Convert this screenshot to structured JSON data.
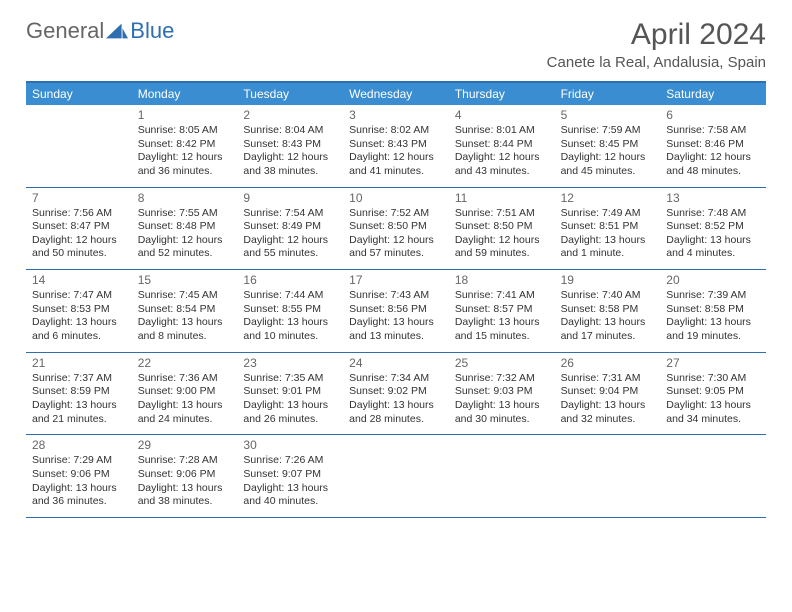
{
  "logo": {
    "general": "General",
    "blue": "Blue"
  },
  "title": "April 2024",
  "location": "Canete la Real, Andalusia, Spain",
  "colors": {
    "header_bg": "#3a8dd0",
    "border": "#2f6fb0",
    "text": "#333333",
    "muted": "#666666",
    "logo_blue": "#2f6fb0"
  },
  "weekdays": [
    "Sunday",
    "Monday",
    "Tuesday",
    "Wednesday",
    "Thursday",
    "Friday",
    "Saturday"
  ],
  "weeks": [
    [
      null,
      {
        "n": "1",
        "sr": "8:05 AM",
        "ss": "8:42 PM",
        "dl": "12 hours and 36 minutes."
      },
      {
        "n": "2",
        "sr": "8:04 AM",
        "ss": "8:43 PM",
        "dl": "12 hours and 38 minutes."
      },
      {
        "n": "3",
        "sr": "8:02 AM",
        "ss": "8:43 PM",
        "dl": "12 hours and 41 minutes."
      },
      {
        "n": "4",
        "sr": "8:01 AM",
        "ss": "8:44 PM",
        "dl": "12 hours and 43 minutes."
      },
      {
        "n": "5",
        "sr": "7:59 AM",
        "ss": "8:45 PM",
        "dl": "12 hours and 45 minutes."
      },
      {
        "n": "6",
        "sr": "7:58 AM",
        "ss": "8:46 PM",
        "dl": "12 hours and 48 minutes."
      }
    ],
    [
      {
        "n": "7",
        "sr": "7:56 AM",
        "ss": "8:47 PM",
        "dl": "12 hours and 50 minutes."
      },
      {
        "n": "8",
        "sr": "7:55 AM",
        "ss": "8:48 PM",
        "dl": "12 hours and 52 minutes."
      },
      {
        "n": "9",
        "sr": "7:54 AM",
        "ss": "8:49 PM",
        "dl": "12 hours and 55 minutes."
      },
      {
        "n": "10",
        "sr": "7:52 AM",
        "ss": "8:50 PM",
        "dl": "12 hours and 57 minutes."
      },
      {
        "n": "11",
        "sr": "7:51 AM",
        "ss": "8:50 PM",
        "dl": "12 hours and 59 minutes."
      },
      {
        "n": "12",
        "sr": "7:49 AM",
        "ss": "8:51 PM",
        "dl": "13 hours and 1 minute."
      },
      {
        "n": "13",
        "sr": "7:48 AM",
        "ss": "8:52 PM",
        "dl": "13 hours and 4 minutes."
      }
    ],
    [
      {
        "n": "14",
        "sr": "7:47 AM",
        "ss": "8:53 PM",
        "dl": "13 hours and 6 minutes."
      },
      {
        "n": "15",
        "sr": "7:45 AM",
        "ss": "8:54 PM",
        "dl": "13 hours and 8 minutes."
      },
      {
        "n": "16",
        "sr": "7:44 AM",
        "ss": "8:55 PM",
        "dl": "13 hours and 10 minutes."
      },
      {
        "n": "17",
        "sr": "7:43 AM",
        "ss": "8:56 PM",
        "dl": "13 hours and 13 minutes."
      },
      {
        "n": "18",
        "sr": "7:41 AM",
        "ss": "8:57 PM",
        "dl": "13 hours and 15 minutes."
      },
      {
        "n": "19",
        "sr": "7:40 AM",
        "ss": "8:58 PM",
        "dl": "13 hours and 17 minutes."
      },
      {
        "n": "20",
        "sr": "7:39 AM",
        "ss": "8:58 PM",
        "dl": "13 hours and 19 minutes."
      }
    ],
    [
      {
        "n": "21",
        "sr": "7:37 AM",
        "ss": "8:59 PM",
        "dl": "13 hours and 21 minutes."
      },
      {
        "n": "22",
        "sr": "7:36 AM",
        "ss": "9:00 PM",
        "dl": "13 hours and 24 minutes."
      },
      {
        "n": "23",
        "sr": "7:35 AM",
        "ss": "9:01 PM",
        "dl": "13 hours and 26 minutes."
      },
      {
        "n": "24",
        "sr": "7:34 AM",
        "ss": "9:02 PM",
        "dl": "13 hours and 28 minutes."
      },
      {
        "n": "25",
        "sr": "7:32 AM",
        "ss": "9:03 PM",
        "dl": "13 hours and 30 minutes."
      },
      {
        "n": "26",
        "sr": "7:31 AM",
        "ss": "9:04 PM",
        "dl": "13 hours and 32 minutes."
      },
      {
        "n": "27",
        "sr": "7:30 AM",
        "ss": "9:05 PM",
        "dl": "13 hours and 34 minutes."
      }
    ],
    [
      {
        "n": "28",
        "sr": "7:29 AM",
        "ss": "9:06 PM",
        "dl": "13 hours and 36 minutes."
      },
      {
        "n": "29",
        "sr": "7:28 AM",
        "ss": "9:06 PM",
        "dl": "13 hours and 38 minutes."
      },
      {
        "n": "30",
        "sr": "7:26 AM",
        "ss": "9:07 PM",
        "dl": "13 hours and 40 minutes."
      },
      null,
      null,
      null,
      null
    ]
  ],
  "labels": {
    "sunrise": "Sunrise:",
    "sunset": "Sunset:",
    "daylight": "Daylight:"
  }
}
